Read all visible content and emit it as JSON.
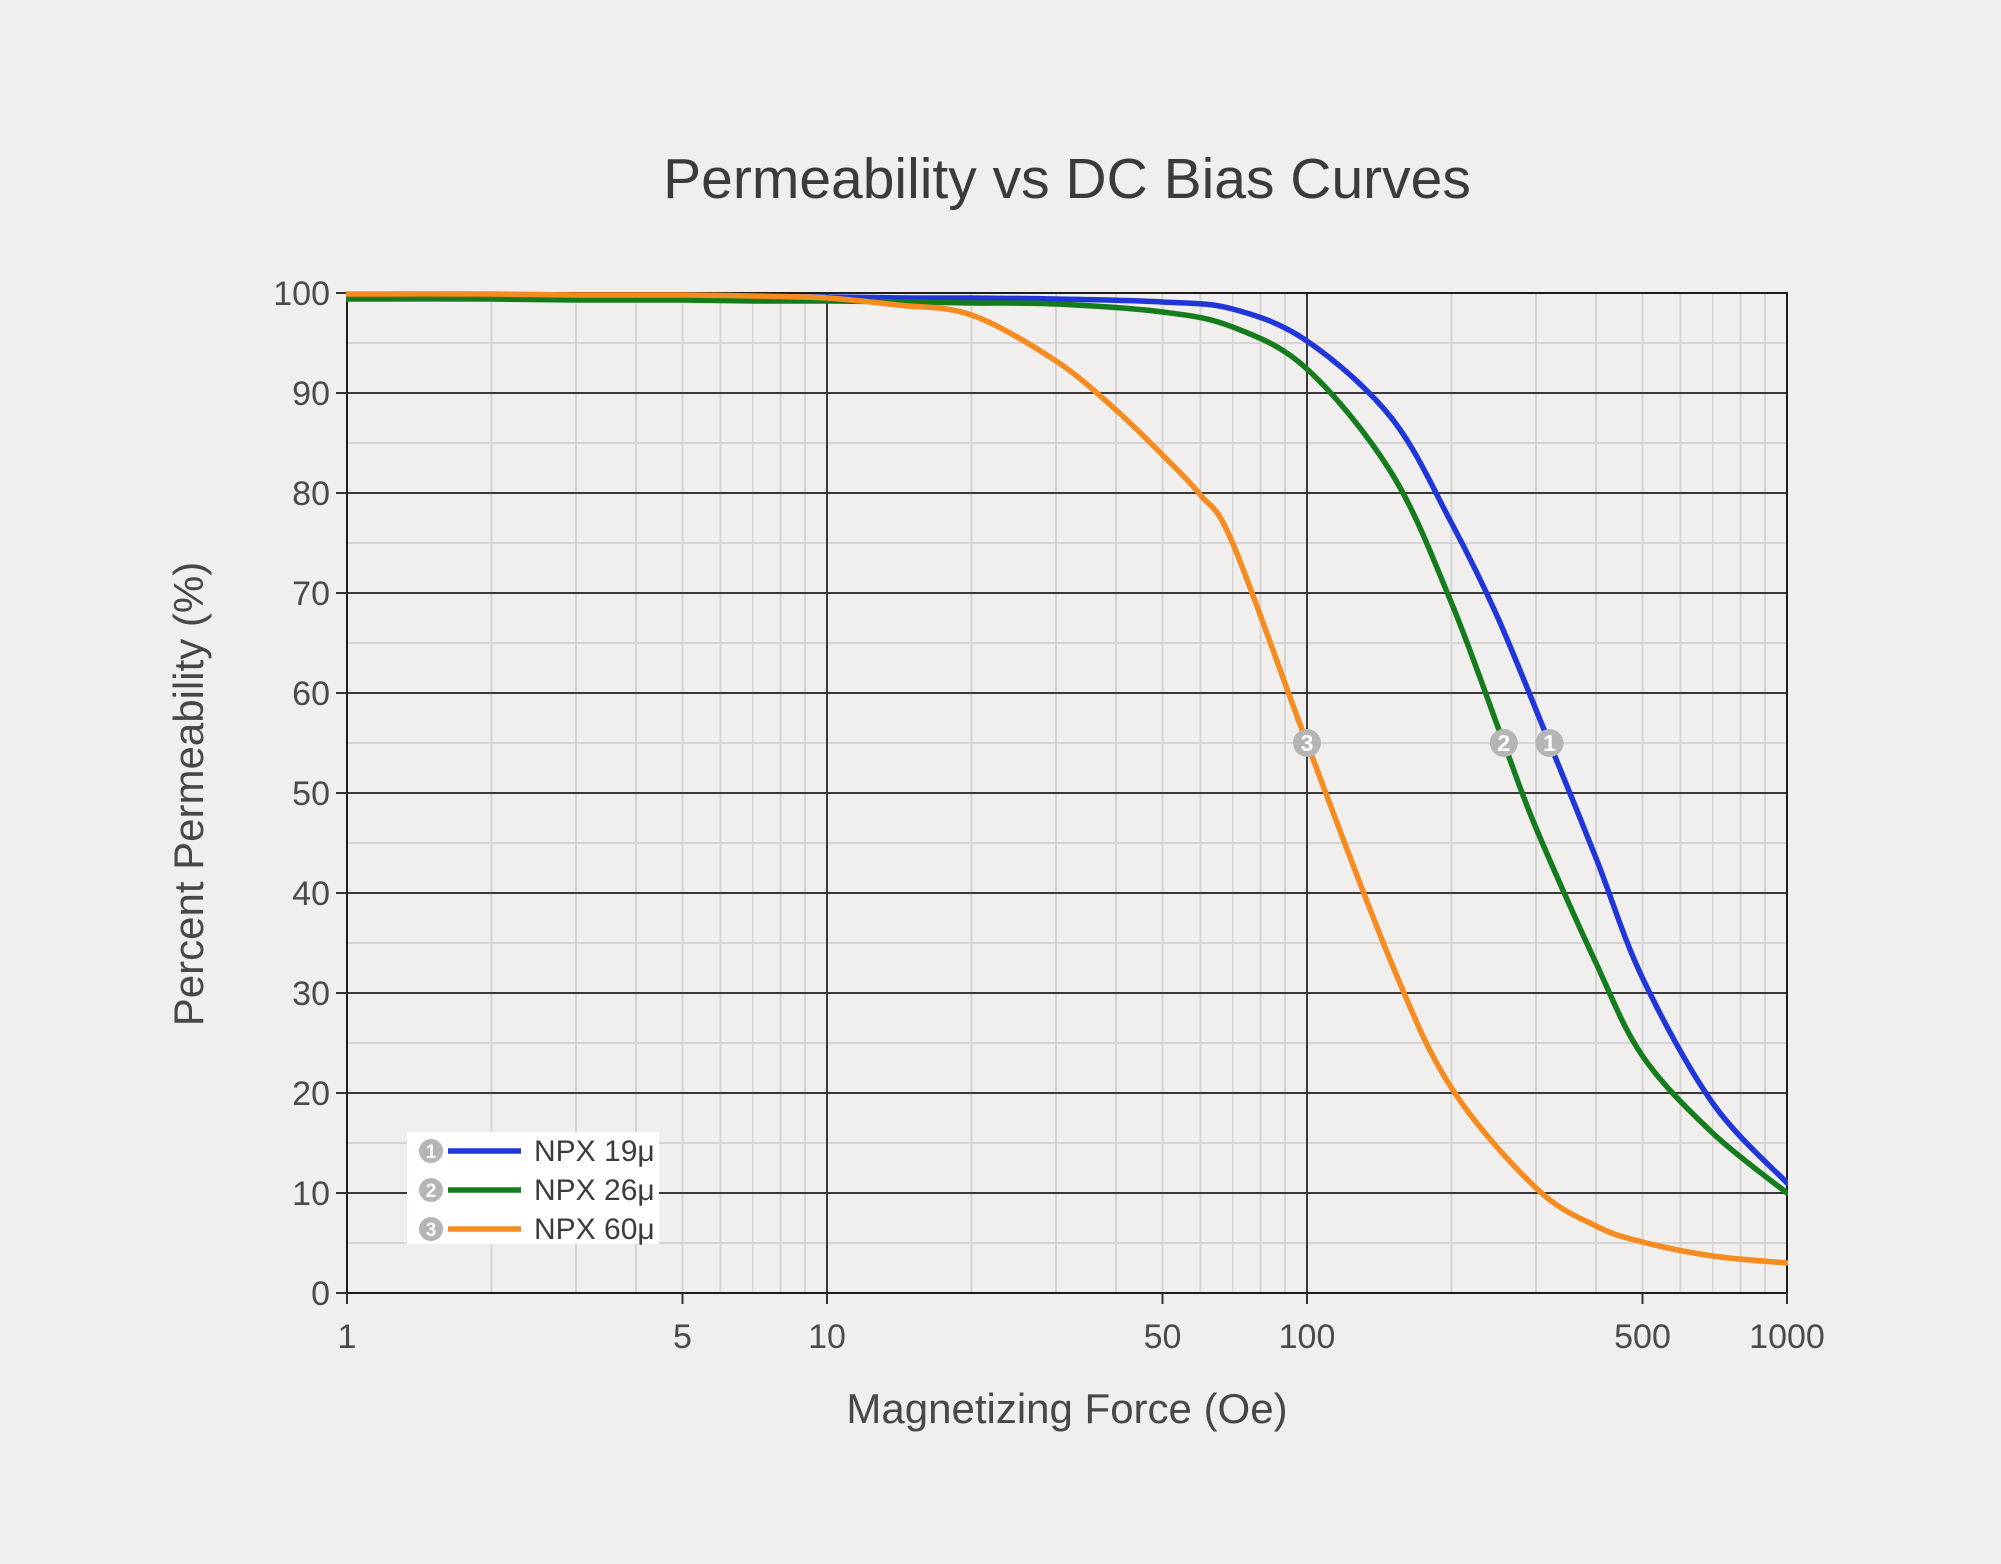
{
  "chart_data": {
    "type": "line",
    "title": "Permeability vs DC Bias Curves",
    "xlabel": "Magnetizing Force (Oe)",
    "ylabel": "Percent Permeability (%)",
    "x_scale": "log",
    "xlim": [
      1,
      1000
    ],
    "ylim": [
      0,
      100
    ],
    "x_ticks": [
      1,
      5,
      10,
      50,
      100,
      500,
      1000
    ],
    "y_ticks": [
      0,
      10,
      20,
      30,
      40,
      50,
      60,
      70,
      80,
      90,
      100
    ],
    "y_minor_step": 5,
    "emphasized_x_gridlines": [
      10,
      100
    ],
    "grid": true,
    "legend_position": "lower-left",
    "colors": {
      "background": "#f0efee",
      "major_grid": "#3a3a3a",
      "minor_grid": "#d4d4d4",
      "axis_border": "#1c1c1c",
      "tick_label": "#4a4a4a",
      "text": "#3b3b3b",
      "marker_fill": "#b5b5b5",
      "marker_text": "#ffffff",
      "legend_bg": "#ffffff"
    },
    "series": [
      {
        "name": "NPX 19μ",
        "badge": "1",
        "color": "#2136d9",
        "marker_at": {
          "x": 320,
          "y": 55
        },
        "points": [
          [
            1,
            99.7
          ],
          [
            2,
            99.7
          ],
          [
            3,
            99.7
          ],
          [
            5,
            99.6
          ],
          [
            7,
            99.6
          ],
          [
            10,
            99.6
          ],
          [
            15,
            99.5
          ],
          [
            20,
            99.5
          ],
          [
            30,
            99.4
          ],
          [
            50,
            99.1
          ],
          [
            70,
            98.4
          ],
          [
            100,
            95.2
          ],
          [
            150,
            87.5
          ],
          [
            200,
            77
          ],
          [
            250,
            67.5
          ],
          [
            320,
            55
          ],
          [
            400,
            43.5
          ],
          [
            500,
            31.5
          ],
          [
            700,
            19
          ],
          [
            1000,
            11
          ]
        ]
      },
      {
        "name": "NPX 26μ",
        "badge": "2",
        "color": "#157c1e",
        "marker_at": {
          "x": 257,
          "y": 55
        },
        "points": [
          [
            1,
            99.4
          ],
          [
            2,
            99.4
          ],
          [
            3,
            99.3
          ],
          [
            5,
            99.3
          ],
          [
            7,
            99.2
          ],
          [
            10,
            99.2
          ],
          [
            15,
            99.1
          ],
          [
            20,
            99.0
          ],
          [
            30,
            98.9
          ],
          [
            50,
            98.1
          ],
          [
            70,
            96.6
          ],
          [
            100,
            92.4
          ],
          [
            150,
            82
          ],
          [
            200,
            69
          ],
          [
            257,
            55
          ],
          [
            300,
            46.5
          ],
          [
            400,
            33
          ],
          [
            500,
            23.7
          ],
          [
            700,
            16
          ],
          [
            1000,
            10
          ]
        ]
      },
      {
        "name": "NPX 60μ",
        "badge": "3",
        "color": "#f68b1f",
        "marker_at": {
          "x": 100,
          "y": 55
        },
        "points": [
          [
            1,
            99.9
          ],
          [
            2,
            99.9
          ],
          [
            3,
            99.8
          ],
          [
            5,
            99.8
          ],
          [
            7,
            99.7
          ],
          [
            10,
            99.5
          ],
          [
            14,
            98.8
          ],
          [
            20,
            97.8
          ],
          [
            30,
            93.2
          ],
          [
            40,
            88.3
          ],
          [
            50,
            83.8
          ],
          [
            60,
            79.8
          ],
          [
            70,
            75
          ],
          [
            100,
            55
          ],
          [
            150,
            33
          ],
          [
            200,
            20.5
          ],
          [
            300,
            10.5
          ],
          [
            400,
            6.7
          ],
          [
            500,
            5.1
          ],
          [
            700,
            3.7
          ],
          [
            1000,
            3
          ]
        ]
      }
    ]
  }
}
